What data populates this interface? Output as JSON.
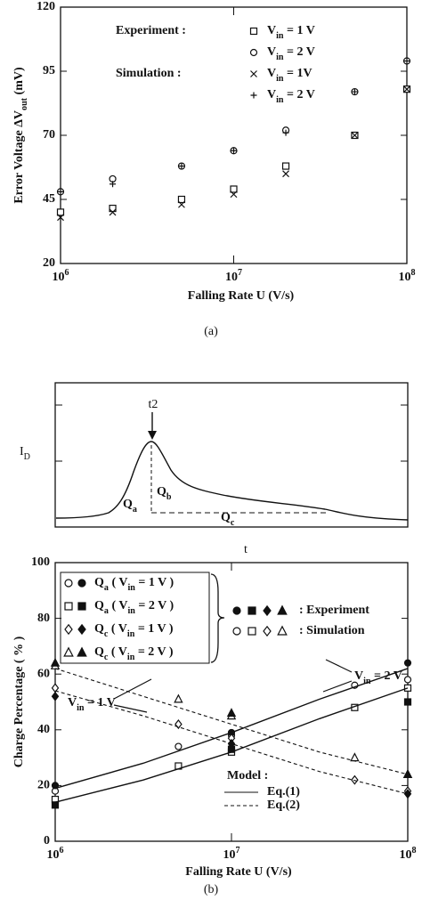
{
  "chart_data": [
    {
      "type": "scatter",
      "caption": "(a)",
      "y_label": [
        "Error Voltage ΔV",
        "out",
        " (mV)"
      ],
      "x_label": "Falling Rate  U (V/s)",
      "xscale": "log",
      "xlim": [
        1000000,
        100000000
      ],
      "xticks": [
        {
          "value": 1000000,
          "label": [
            "10",
            "6"
          ]
        },
        {
          "value": 10000000,
          "label": [
            "10",
            "7"
          ]
        },
        {
          "value": 100000000,
          "label": [
            "10",
            "8"
          ]
        }
      ],
      "ylim": [
        20,
        120
      ],
      "yticks": [
        20,
        45,
        70,
        95,
        120
      ],
      "legend_titles": [
        "Experiment :",
        "Simulation :"
      ],
      "x": [
        1000000,
        2000000,
        5000000,
        10000000,
        20000000,
        50000000,
        100000000
      ],
      "series": [
        {
          "name": [
            "V",
            "in",
            " = 1 V"
          ],
          "marker": "square",
          "filled": false,
          "color": "#111",
          "values": [
            40,
            41.5,
            45,
            49,
            58,
            70,
            88
          ]
        },
        {
          "name": [
            "V",
            "in",
            " = 2 V"
          ],
          "marker": "circle",
          "filled": false,
          "color": "#111",
          "values": [
            48,
            53,
            58,
            64,
            72,
            87,
            99
          ]
        },
        {
          "name": [
            "V",
            "in",
            " = 1V"
          ],
          "marker": "x",
          "filled": false,
          "color": "#111",
          "values": [
            38,
            40,
            43,
            47,
            55,
            70,
            88
          ]
        },
        {
          "name": [
            "V",
            "in",
            " = 2 V"
          ],
          "marker": "plus",
          "filled": false,
          "color": "#111",
          "values": [
            48,
            51,
            58,
            64,
            71,
            87,
            99
          ]
        }
      ]
    },
    {
      "type": "scatter",
      "caption": "(b)",
      "y_label": "Charge Percentage ( % )",
      "x_label": "Falling Rate  U (V/s)",
      "xscale": "log",
      "xlim": [
        1000000,
        100000000
      ],
      "xticks": [
        {
          "value": 1000000,
          "label": [
            "10",
            "6"
          ]
        },
        {
          "value": 10000000,
          "label": [
            "10",
            "7"
          ]
        },
        {
          "value": 100000000,
          "label": [
            "10",
            "8"
          ]
        }
      ],
      "ylim": [
        0,
        100
      ],
      "yticks": [
        0,
        20,
        40,
        60,
        80,
        100
      ],
      "legend": {
        "entries": [
          [
            "Q",
            "a",
            " ( V",
            "in",
            " = 1 V )"
          ],
          [
            "Q",
            "a",
            " ( V",
            "in",
            " = 2 V )"
          ],
          [
            "Q",
            "c",
            " ( V",
            "in",
            " = 1 V )"
          ],
          [
            "Q",
            "c",
            " ( V",
            "in",
            " = 2 V )"
          ]
        ],
        "experiment": ": Experiment",
        "simulation": ": Simulation"
      },
      "model_legend": {
        "title": "Model :",
        "items": [
          "Eq.(1)",
          "Eq.(2)"
        ]
      },
      "annotations": [
        [
          "V",
          "in",
          " = 1 V"
        ],
        [
          "V",
          "in",
          " = 2 V"
        ]
      ],
      "series": [
        {
          "marker": "circle",
          "filled": false,
          "color": "#111",
          "x": [
            1000000,
            5000000,
            10000000,
            50000000,
            100000000
          ],
          "values": [
            18,
            34,
            38,
            56,
            58
          ]
        },
        {
          "marker": "circle",
          "filled": true,
          "color": "#111",
          "x": [
            1000000,
            10000000,
            100000000
          ],
          "values": [
            20,
            39,
            64
          ]
        },
        {
          "marker": "square",
          "filled": false,
          "color": "#111",
          "x": [
            1000000,
            5000000,
            10000000,
            50000000,
            100000000
          ],
          "values": [
            15,
            27,
            32,
            48,
            55
          ]
        },
        {
          "marker": "square",
          "filled": true,
          "color": "#111",
          "x": [
            1000000,
            10000000,
            100000000
          ],
          "values": [
            13,
            33,
            50
          ]
        },
        {
          "marker": "diamond",
          "filled": false,
          "color": "#111",
          "x": [
            1000000,
            5000000,
            10000000,
            50000000,
            100000000
          ],
          "values": [
            55,
            42,
            37,
            22,
            18
          ]
        },
        {
          "marker": "diamond",
          "filled": true,
          "color": "#111",
          "x": [
            1000000,
            10000000,
            100000000
          ],
          "values": [
            52,
            35,
            17
          ]
        },
        {
          "marker": "triangle",
          "filled": false,
          "color": "#111",
          "x": [
            1000000,
            5000000,
            10000000,
            50000000,
            100000000
          ],
          "values": [
            63,
            51,
            45,
            30,
            24
          ]
        },
        {
          "marker": "triangle",
          "filled": true,
          "color": "#111",
          "x": [
            1000000,
            10000000,
            100000000
          ],
          "values": [
            64,
            46,
            24
          ]
        },
        {
          "style": "solid",
          "color": "#111",
          "x": [
            1000000,
            3160000,
            10000000,
            31600000,
            100000000
          ],
          "values": [
            19,
            28,
            39,
            51,
            62
          ]
        },
        {
          "style": "solid",
          "color": "#111",
          "x": [
            1000000,
            3160000,
            10000000,
            31600000,
            100000000
          ],
          "values": [
            14,
            22,
            32,
            44,
            55
          ]
        },
        {
          "style": "dashed",
          "color": "#111",
          "x": [
            1000000,
            3160000,
            10000000,
            31600000,
            100000000
          ],
          "values": [
            54,
            45,
            35,
            25,
            17
          ]
        },
        {
          "style": "dashed",
          "color": "#111",
          "x": [
            1000000,
            3160000,
            10000000,
            31600000,
            100000000
          ],
          "values": [
            62,
            52,
            42,
            32,
            24
          ]
        }
      ]
    }
  ],
  "waveform": {
    "y_label": [
      "I",
      "D"
    ],
    "x_label": "t",
    "peak_label": "t2",
    "regions": [
      [
        "Q",
        "a"
      ],
      [
        "Q",
        "b"
      ],
      [
        "Q",
        "c"
      ]
    ]
  }
}
